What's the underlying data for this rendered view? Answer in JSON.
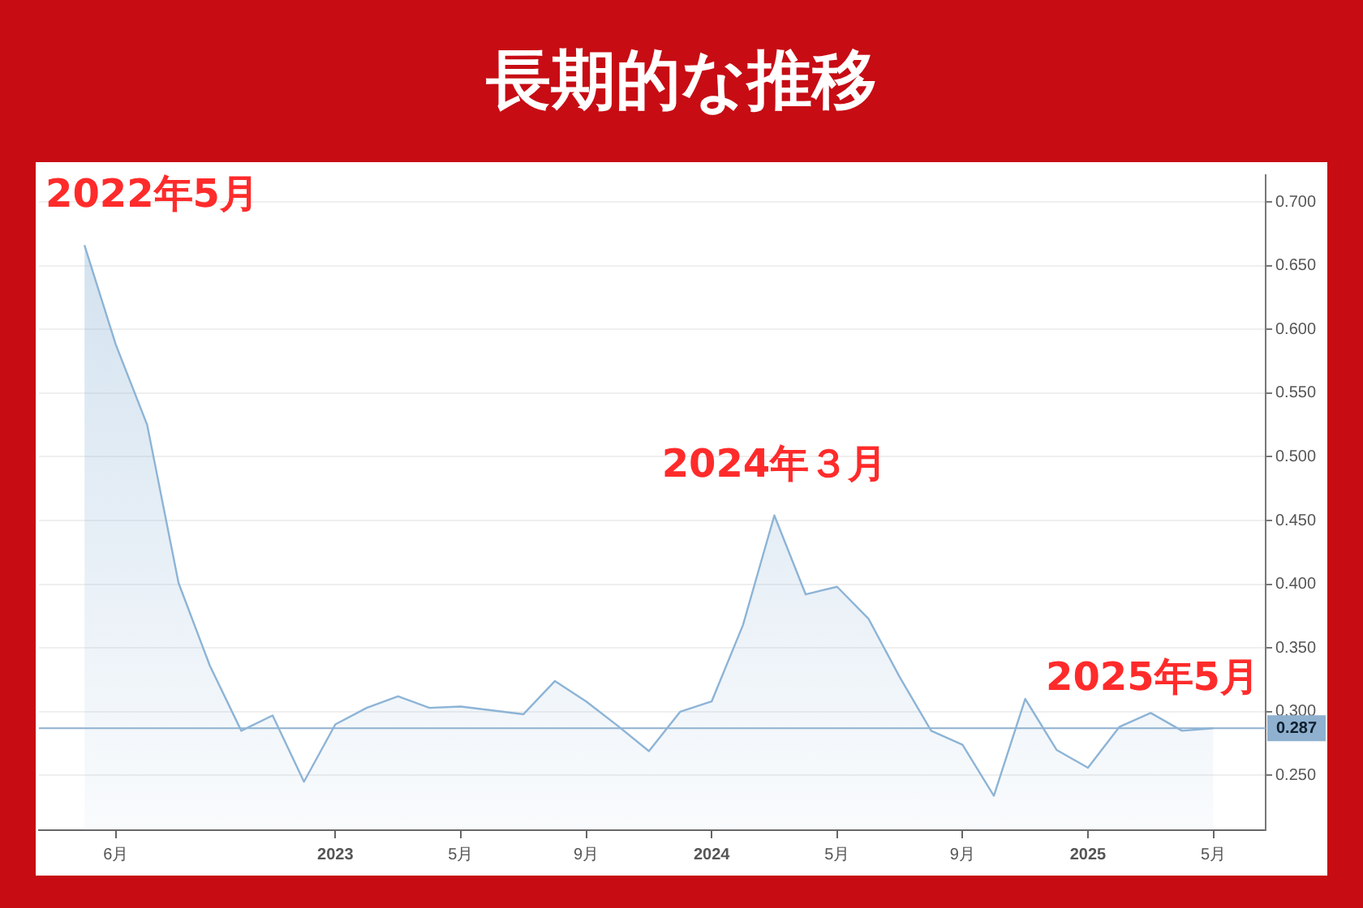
{
  "chart_data": {
    "type": "area",
    "title": "長期的な推移",
    "x": [
      "2022-05",
      "2022-06",
      "2022-07",
      "2022-08",
      "2022-09",
      "2022-10",
      "2022-11",
      "2022-12",
      "2023-01",
      "2023-02",
      "2023-03",
      "2023-04",
      "2023-05",
      "2023-06",
      "2023-07",
      "2023-08",
      "2023-09",
      "2023-10",
      "2023-11",
      "2023-12",
      "2024-01",
      "2024-02",
      "2024-03",
      "2024-04",
      "2024-05",
      "2024-06",
      "2024-07",
      "2024-08",
      "2024-09",
      "2024-10",
      "2024-11",
      "2024-12",
      "2025-01",
      "2025-02",
      "2025-03",
      "2025-04",
      "2025-05"
    ],
    "values": [
      0.666,
      0.588,
      0.525,
      0.401,
      0.336,
      0.285,
      0.297,
      0.245,
      0.29,
      0.303,
      0.312,
      0.303,
      0.304,
      0.301,
      0.298,
      0.324,
      0.308,
      0.289,
      0.269,
      0.3,
      0.308,
      0.368,
      0.454,
      0.392,
      0.398,
      0.373,
      0.327,
      0.285,
      0.274,
      0.234,
      0.31,
      0.27,
      0.256,
      0.288,
      0.299,
      0.285,
      0.287
    ],
    "color": "#8db4d6",
    "xlim": [
      "2022-03-18",
      "2025-06-21"
    ],
    "xticks": [
      {
        "value": "2022-06",
        "label": "6月"
      },
      {
        "value": "2023-01",
        "label": "2023"
      },
      {
        "value": "2023-05",
        "label": "5月"
      },
      {
        "value": "2023-09",
        "label": "9月"
      },
      {
        "value": "2024-01",
        "label": "2024"
      },
      {
        "value": "2024-05",
        "label": "5月"
      },
      {
        "value": "2024-09",
        "label": "9月"
      },
      {
        "value": "2025-01",
        "label": "2025"
      },
      {
        "value": "2025-05",
        "label": "5月"
      }
    ],
    "ylim": [
      0.207,
      0.721
    ],
    "yticks": [
      {
        "value": 0.25,
        "label": "0.250"
      },
      {
        "value": 0.3,
        "label": "0.300"
      },
      {
        "value": 0.35,
        "label": "0.350"
      },
      {
        "value": 0.4,
        "label": "0.400"
      },
      {
        "value": 0.45,
        "label": "0.450"
      },
      {
        "value": 0.5,
        "label": "0.500"
      },
      {
        "value": 0.55,
        "label": "0.550"
      },
      {
        "value": 0.6,
        "label": "0.600"
      },
      {
        "value": 0.65,
        "label": "0.650"
      },
      {
        "value": 0.7,
        "label": "0.700"
      }
    ],
    "grid": "y",
    "ref_lines": [
      {
        "axis": "y",
        "value": 0.287,
        "label": "0.287",
        "color": "#8fb1cf"
      }
    ],
    "annotations": [
      {
        "text": "2022年5月",
        "x": "2022-05",
        "y": 0.666
      },
      {
        "text": "2024年３月",
        "x": "2024-03",
        "y": 0.454
      },
      {
        "text": "2025年5月",
        "x": "2025-05",
        "y": 0.287
      }
    ]
  }
}
